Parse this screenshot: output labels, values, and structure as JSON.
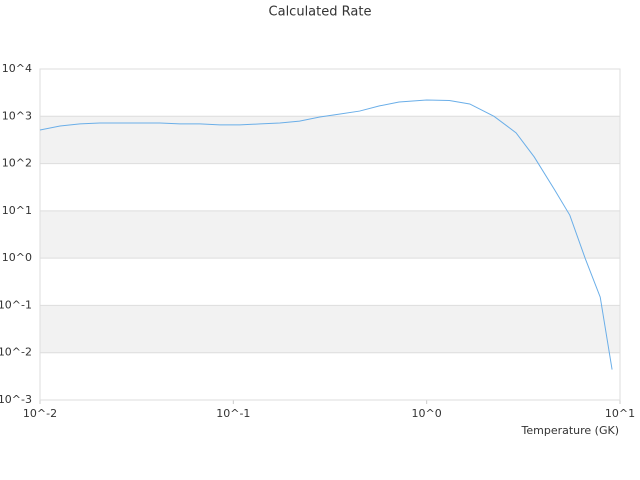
{
  "chart_data": {
    "type": "line",
    "title": "Calculated Rate",
    "x_label": "Temperature (GK)",
    "log_x": true,
    "log_y": true,
    "grid": true,
    "xlim": [
      0.01,
      10
    ],
    "ylim": [
      0.001,
      10000
    ],
    "xticks": [
      {
        "value": 0.01,
        "label": "10^-2"
      },
      {
        "value": 0.1,
        "label": "10^-1"
      },
      {
        "value": 1,
        "label": "10^0"
      },
      {
        "value": 10,
        "label": "10^1"
      }
    ],
    "yticks": [
      {
        "value": 0.001,
        "label": "10^-3"
      },
      {
        "value": 0.01,
        "label": "10^-2"
      },
      {
        "value": 0.1,
        "label": "10^-1"
      },
      {
        "value": 1,
        "label": "10^0"
      },
      {
        "value": 10,
        "label": "10^1"
      },
      {
        "value": 100,
        "label": "10^2"
      },
      {
        "value": 1000,
        "label": "10^3"
      },
      {
        "value": 10000,
        "label": "10^4"
      }
    ],
    "x": [
      0.01,
      0.0127,
      0.0161,
      0.0204,
      0.0292,
      0.0417,
      0.0529,
      0.067,
      0.085,
      0.108,
      0.138,
      0.174,
      0.22,
      0.28,
      0.357,
      0.45,
      0.57,
      0.72,
      1.0,
      1.31,
      1.67,
      2.23,
      2.9,
      3.6,
      4.6,
      5.5,
      6.6,
      7.9,
      9.1
    ],
    "series": [
      {
        "color": "#6aaee8",
        "values": [
          513,
          623,
          690,
          720,
          720,
          720,
          690,
          690,
          660,
          660,
          690,
          720,
          790,
          966,
          1120,
          1290,
          1660,
          2000,
          2210,
          2160,
          1820,
          1000,
          447,
          138,
          27.5,
          8.1,
          1.0,
          0.15,
          0.0044
        ]
      }
    ]
  }
}
